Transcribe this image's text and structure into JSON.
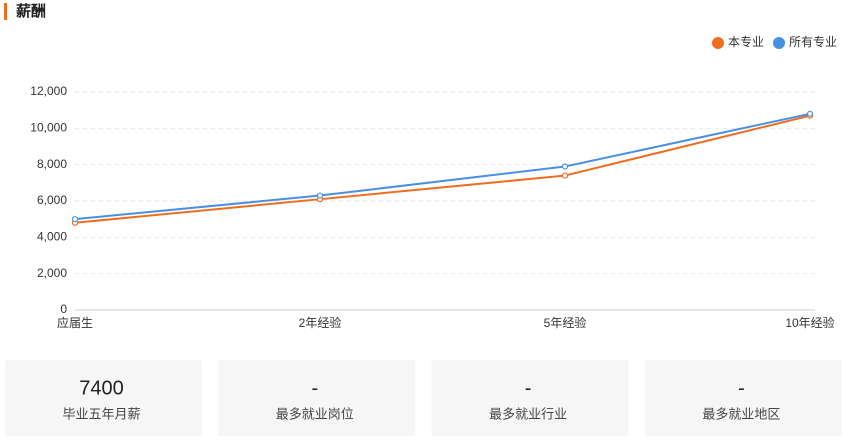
{
  "header": {
    "title": "薪酬"
  },
  "chart_data": {
    "type": "line",
    "categories": [
      "应届生",
      "2年经验",
      "5年经验",
      "10年经验"
    ],
    "series": [
      {
        "name": "本专业",
        "color": "#ee6d1e",
        "values": [
          4800,
          6100,
          7400,
          10700
        ]
      },
      {
        "name": "所有专业",
        "color": "#4a90e2",
        "values": [
          5000,
          6300,
          7900,
          10800
        ]
      }
    ],
    "ylim": [
      0,
      12000
    ],
    "yticks": [
      0,
      {
        "value": 2000,
        "label": "2,000"
      },
      {
        "value": 4000,
        "label": "4,000"
      },
      {
        "value": 6000,
        "label": "6,000"
      },
      {
        "value": 8000,
        "label": "8,000"
      },
      {
        "value": 10000,
        "label": "10,000"
      },
      {
        "value": 12000,
        "label": "12,000"
      }
    ],
    "grid": true,
    "legend": "top-right"
  },
  "cards": [
    {
      "value": 7400,
      "label": "毕业五年月薪"
    },
    {
      "value": "-",
      "label": "最多就业岗位"
    },
    {
      "value": "-",
      "label": "最多就业行业"
    },
    {
      "value": "-",
      "label": "最多就业地区"
    }
  ]
}
